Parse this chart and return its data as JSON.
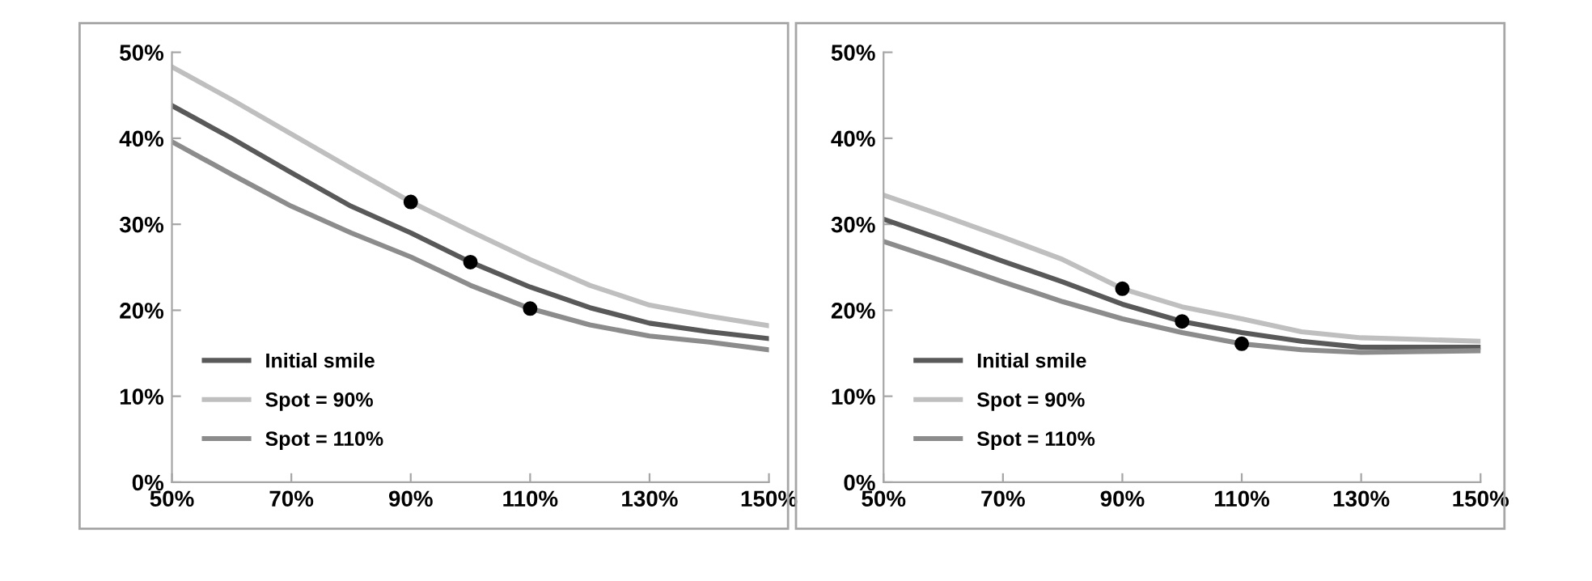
{
  "chart_data": [
    {
      "type": "line",
      "x": [
        50,
        60,
        70,
        80,
        90,
        100,
        110,
        120,
        130,
        140,
        150
      ],
      "xlim": [
        50,
        150
      ],
      "ylim": [
        0,
        50
      ],
      "xticks": [
        {
          "value": 50,
          "label": "50%"
        },
        {
          "value": 70,
          "label": "70%"
        },
        {
          "value": 90,
          "label": "90%"
        },
        {
          "value": 110,
          "label": "110%"
        },
        {
          "value": 130,
          "label": "130%"
        },
        {
          "value": 150,
          "label": "150%"
        }
      ],
      "yticks": [
        {
          "value": 0,
          "label": "0%"
        },
        {
          "value": 10,
          "label": "10%"
        },
        {
          "value": 20,
          "label": "20%"
        },
        {
          "value": 30,
          "label": "30%"
        },
        {
          "value": 40,
          "label": "40%"
        },
        {
          "value": 50,
          "label": "50%"
        }
      ],
      "grid": false,
      "legend": "bottom left",
      "series": [
        {
          "name": "Initial smile",
          "color": "#595959",
          "values": [
            43.8,
            40.0,
            36.0,
            32.1,
            29.0,
            25.6,
            22.7,
            20.3,
            18.5,
            17.5,
            16.7
          ]
        },
        {
          "name": "Spot = 90%",
          "color": "#bfbfbf",
          "values": [
            48.3,
            44.5,
            40.5,
            36.5,
            32.6,
            29.2,
            25.9,
            22.9,
            20.6,
            19.3,
            18.2
          ]
        },
        {
          "name": "Spot = 110%",
          "color": "#8c8c8c",
          "values": [
            39.6,
            35.8,
            32.1,
            29.0,
            26.2,
            22.9,
            20.2,
            18.3,
            17.0,
            16.3,
            15.4
          ]
        },
        {
          "type": "scatter",
          "color": "#000000",
          "marker": "circle",
          "x": [
            90,
            100,
            110
          ],
          "values": [
            32.6,
            25.6,
            20.2
          ]
        }
      ]
    },
    {
      "type": "line",
      "x": [
        50,
        60,
        70,
        80,
        90,
        100,
        110,
        120,
        130,
        140,
        150
      ],
      "xlim": [
        50,
        150
      ],
      "ylim": [
        0,
        50
      ],
      "xticks": [
        {
          "value": 50,
          "label": "50%"
        },
        {
          "value": 70,
          "label": "70%"
        },
        {
          "value": 90,
          "label": "90%"
        },
        {
          "value": 110,
          "label": "110%"
        },
        {
          "value": 130,
          "label": "130%"
        },
        {
          "value": 150,
          "label": "150%"
        }
      ],
      "yticks": [
        {
          "value": 0,
          "label": "0%"
        },
        {
          "value": 10,
          "label": "10%"
        },
        {
          "value": 20,
          "label": "20%"
        },
        {
          "value": 30,
          "label": "30%"
        },
        {
          "value": 40,
          "label": "40%"
        },
        {
          "value": 50,
          "label": "50%"
        }
      ],
      "grid": false,
      "legend": "bottom left",
      "series": [
        {
          "name": "Initial smile",
          "color": "#595959",
          "values": [
            30.6,
            28.2,
            25.7,
            23.3,
            20.7,
            18.7,
            17.4,
            16.4,
            15.7,
            15.7,
            15.7
          ]
        },
        {
          "name": "Spot = 90%",
          "color": "#bfbfbf",
          "values": [
            33.4,
            31.0,
            28.5,
            25.9,
            22.5,
            20.4,
            19.0,
            17.5,
            16.8,
            16.6,
            16.4
          ]
        },
        {
          "name": "Spot = 110%",
          "color": "#8c8c8c",
          "values": [
            28.0,
            25.7,
            23.3,
            21.0,
            19.0,
            17.4,
            16.1,
            15.4,
            15.1,
            15.2,
            15.3
          ]
        },
        {
          "type": "scatter",
          "color": "#000000",
          "marker": "circle",
          "x": [
            90,
            100,
            110
          ],
          "values": [
            22.5,
            18.7,
            16.1
          ]
        }
      ]
    }
  ]
}
